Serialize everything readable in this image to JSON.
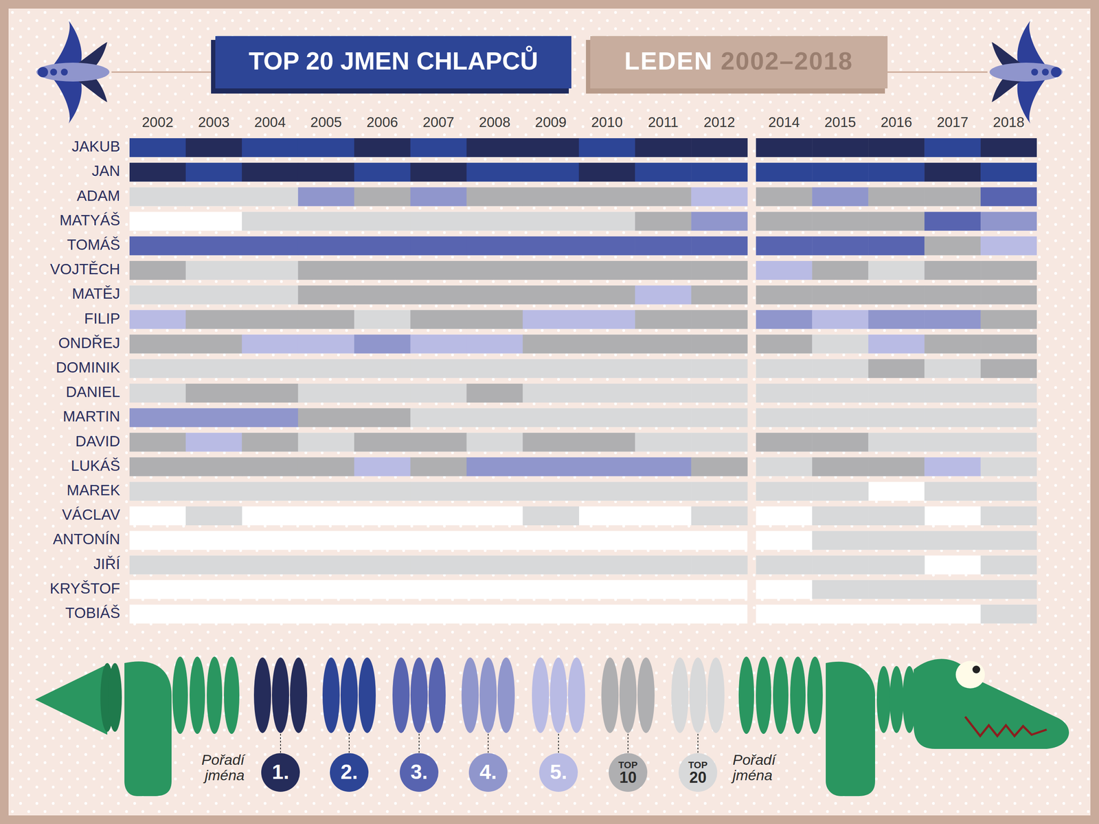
{
  "chart_data": {
    "type": "heatmap",
    "title": "TOP 20 JMEN CHLAPCŮ",
    "subtitle": "LEDEN 2002–2018",
    "categories": [
      "2002",
      "2003",
      "2004",
      "2005",
      "2006",
      "2007",
      "2008",
      "2009",
      "2010",
      "2011",
      "2012",
      "2014",
      "2015",
      "2016",
      "2017",
      "2018"
    ],
    "series": [
      {
        "name": "JAKUB",
        "values": [
          2,
          1,
          2,
          2,
          1,
          2,
          1,
          1,
          2,
          1,
          1,
          1,
          1,
          1,
          2,
          1
        ]
      },
      {
        "name": "JAN",
        "values": [
          1,
          2,
          1,
          1,
          2,
          1,
          2,
          2,
          1,
          2,
          2,
          2,
          2,
          2,
          1,
          2
        ]
      },
      {
        "name": "ADAM",
        "values": [
          20,
          20,
          20,
          4,
          10,
          4,
          10,
          10,
          10,
          10,
          5,
          10,
          4,
          10,
          10,
          3
        ]
      },
      {
        "name": "MATYÁŠ",
        "values": [
          null,
          null,
          20,
          20,
          20,
          20,
          20,
          20,
          20,
          10,
          4,
          10,
          10,
          10,
          3,
          4
        ]
      },
      {
        "name": "TOMÁŠ",
        "values": [
          3,
          3,
          3,
          3,
          3,
          3,
          3,
          3,
          3,
          3,
          3,
          3,
          3,
          3,
          10,
          5
        ]
      },
      {
        "name": "VOJTĚCH",
        "values": [
          10,
          20,
          20,
          10,
          10,
          10,
          10,
          10,
          10,
          10,
          10,
          5,
          10,
          20,
          10,
          10
        ]
      },
      {
        "name": "MATĚJ",
        "values": [
          20,
          20,
          20,
          10,
          10,
          10,
          10,
          10,
          10,
          5,
          10,
          10,
          10,
          10,
          10,
          10
        ]
      },
      {
        "name": "FILIP",
        "values": [
          5,
          10,
          10,
          10,
          20,
          10,
          10,
          5,
          5,
          10,
          10,
          4,
          5,
          4,
          4,
          10
        ]
      },
      {
        "name": "ONDŘEJ",
        "values": [
          10,
          10,
          5,
          5,
          4,
          5,
          5,
          10,
          10,
          10,
          10,
          10,
          20,
          5,
          10,
          10
        ]
      },
      {
        "name": "DOMINIK",
        "values": [
          20,
          20,
          20,
          20,
          20,
          20,
          20,
          20,
          20,
          20,
          20,
          20,
          20,
          10,
          20,
          10
        ]
      },
      {
        "name": "DANIEL",
        "values": [
          20,
          10,
          10,
          20,
          20,
          20,
          10,
          20,
          20,
          20,
          20,
          20,
          20,
          20,
          20,
          20
        ]
      },
      {
        "name": "MARTIN",
        "values": [
          4,
          4,
          4,
          10,
          10,
          20,
          20,
          20,
          20,
          20,
          20,
          20,
          20,
          20,
          20,
          20
        ]
      },
      {
        "name": "DAVID",
        "values": [
          10,
          5,
          10,
          20,
          10,
          10,
          20,
          10,
          10,
          20,
          20,
          10,
          10,
          20,
          20,
          20
        ]
      },
      {
        "name": "LUKÁŠ",
        "values": [
          10,
          10,
          10,
          10,
          5,
          10,
          4,
          4,
          4,
          4,
          10,
          20,
          10,
          10,
          5,
          20
        ]
      },
      {
        "name": "MAREK",
        "values": [
          20,
          20,
          20,
          20,
          20,
          20,
          20,
          20,
          20,
          20,
          20,
          20,
          20,
          null,
          20,
          20
        ]
      },
      {
        "name": "VÁCLAV",
        "values": [
          null,
          20,
          null,
          null,
          null,
          null,
          null,
          20,
          null,
          null,
          20,
          null,
          20,
          20,
          null,
          20
        ]
      },
      {
        "name": "ANTONÍN",
        "values": [
          null,
          null,
          null,
          null,
          null,
          null,
          null,
          null,
          null,
          null,
          null,
          null,
          20,
          20,
          20,
          20
        ]
      },
      {
        "name": "JIŘÍ",
        "values": [
          20,
          20,
          20,
          20,
          20,
          20,
          20,
          20,
          20,
          20,
          20,
          20,
          20,
          20,
          null,
          20
        ]
      },
      {
        "name": "KRYŠTOF",
        "values": [
          null,
          null,
          null,
          null,
          null,
          null,
          null,
          null,
          null,
          null,
          null,
          null,
          20,
          20,
          20,
          20
        ]
      },
      {
        "name": "TOBIÁŠ",
        "values": [
          null,
          null,
          null,
          null,
          null,
          null,
          null,
          null,
          null,
          null,
          null,
          null,
          null,
          null,
          null,
          20
        ]
      }
    ],
    "legend_title": "Pořadí jména",
    "levels": [
      {
        "value": 1,
        "label": "1.",
        "color": "#252c5a"
      },
      {
        "value": 2,
        "label": "2.",
        "color": "#2d4596"
      },
      {
        "value": 3,
        "label": "3.",
        "color": "#5864b0"
      },
      {
        "value": 4,
        "label": "4.",
        "color": "#9096cc"
      },
      {
        "value": 5,
        "label": "5.",
        "color": "#b9bbe4"
      },
      {
        "value": 10,
        "label": "TOP 10",
        "color": "#afafb1"
      },
      {
        "value": 20,
        "label": "TOP 20",
        "color": "#d8d9da"
      }
    ]
  }
}
